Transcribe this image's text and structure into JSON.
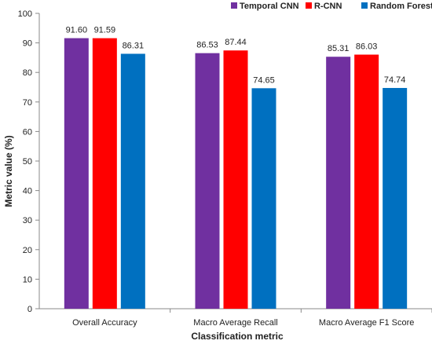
{
  "chart_data": {
    "type": "bar",
    "title": "",
    "xlabel": "Classification metric",
    "ylabel": "Metric value (%)",
    "ylim": [
      0,
      100
    ],
    "yticks": [
      0,
      10,
      20,
      30,
      40,
      50,
      60,
      70,
      80,
      90,
      100
    ],
    "grid": false,
    "legend_position": "top-right",
    "categories": [
      "Overall Accuracy",
      "Macro Average Recall",
      "Macro Average F1 Score"
    ],
    "series": [
      {
        "name": "Temporal CNN",
        "color": "#7030A0",
        "values": [
          91.6,
          86.53,
          85.31
        ],
        "labels": [
          "91.60",
          "86.53",
          "85.31"
        ]
      },
      {
        "name": "R-CNN",
        "color": "#FF0000",
        "values": [
          91.59,
          87.44,
          86.03
        ],
        "labels": [
          "91.59",
          "87.44",
          "86.03"
        ]
      },
      {
        "name": "Random Forest",
        "color": "#0070C0",
        "values": [
          86.31,
          74.65,
          74.74
        ],
        "labels": [
          "86.31",
          "74.65",
          "74.74"
        ]
      }
    ]
  }
}
